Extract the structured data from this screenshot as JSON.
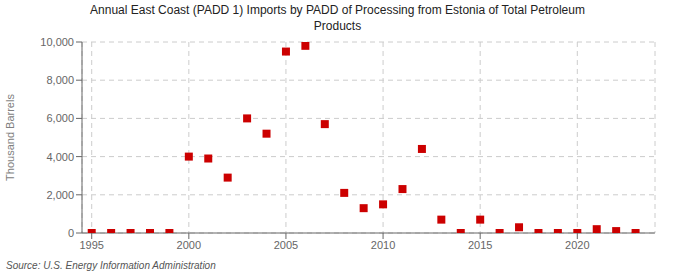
{
  "chart_data": {
    "type": "scatter",
    "title": "Annual East Coast (PADD 1) Imports by PADD of Processing from Estonia of Total Petroleum\nProducts",
    "y_label": "Thousand Barrels",
    "annotations": [
      "Source: U.S. Energy Information Administration"
    ],
    "x": [
      1995,
      1996,
      1997,
      1998,
      1999,
      2000,
      2001,
      2002,
      2003,
      2004,
      2005,
      2006,
      2007,
      2008,
      2009,
      2010,
      2011,
      2012,
      2013,
      2014,
      2015,
      2016,
      2017,
      2018,
      2019,
      2020,
      2021,
      2022,
      2023
    ],
    "values": [
      0,
      0,
      0,
      0,
      0,
      4000,
      3900,
      2900,
      6000,
      5200,
      9500,
      9800,
      5700,
      2100,
      1300,
      1500,
      2300,
      4400,
      700,
      0,
      700,
      0,
      300,
      0,
      0,
      0,
      200,
      100,
      0
    ],
    "color": "#cc0000",
    "marker": "square",
    "xlim": [
      1994.5,
      2024
    ],
    "ylim": [
      0,
      10000
    ],
    "xticks": [
      1995,
      2000,
      2005,
      2010,
      2015,
      2020
    ],
    "yticks": [
      0,
      {
        "value": 2000,
        "label": "2,000"
      },
      {
        "value": 4000,
        "label": "4,000"
      },
      {
        "value": 6000,
        "label": "6,000"
      },
      {
        "value": 8000,
        "label": "8,000"
      },
      {
        "value": 10000,
        "label": "10,000"
      }
    ],
    "grid": true
  }
}
